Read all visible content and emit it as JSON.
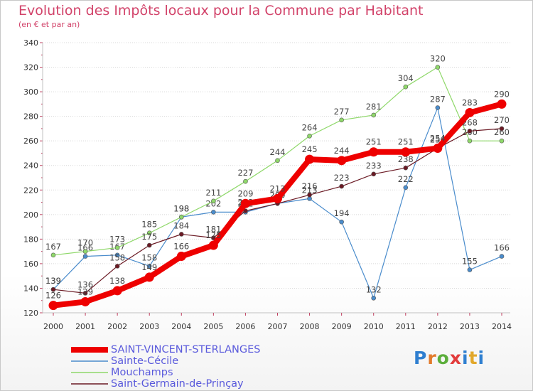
{
  "title": "Evolution des Impôts locaux pour la Commune par Habitant",
  "subtitle": "(en € et par an)",
  "logo": "Proxiti",
  "colors": {
    "title": "#d2436a",
    "axis": "#c0c0c0",
    "grid": "#d8d8d8",
    "legend_text": "#5a5adc"
  },
  "chart_data": {
    "type": "line",
    "x": [
      2000,
      2001,
      2002,
      2003,
      2004,
      2005,
      2006,
      2007,
      2008,
      2009,
      2010,
      2011,
      2012,
      2013,
      2014
    ],
    "ylim": [
      120,
      340
    ],
    "yticks": [
      120,
      140,
      160,
      180,
      200,
      220,
      240,
      260,
      280,
      300,
      320,
      340
    ],
    "grid": "horizontal",
    "legend_position": "bottom-left",
    "series": [
      {
        "name": "Sainte-Cécile",
        "color": "#4a8ccc",
        "width": 1.2,
        "values": [
          139,
          166,
          167,
          158,
          198,
          202,
          202,
          209,
          213,
          194,
          132,
          222,
          287,
          155,
          166
        ]
      },
      {
        "name": "Mouchamps",
        "color": "#8fd86a",
        "width": 1.2,
        "values": [
          167,
          170,
          173,
          185,
          198,
          211,
          227,
          244,
          264,
          277,
          281,
          304,
          320,
          260,
          260
        ]
      },
      {
        "name": "Saint-Germain-de-Prinçay",
        "color": "#6b1a24",
        "width": 1.2,
        "values": [
          139,
          136,
          158,
          175,
          184,
          181,
          203,
          209,
          216,
          223,
          233,
          238,
          254,
          268,
          270
        ]
      },
      {
        "name": "SAINT-VINCENT-STERLANGES",
        "color": "#ee0000",
        "width": 8,
        "values": [
          126,
          129,
          138,
          149,
          166,
          175,
          209,
          213,
          245,
          244,
          251,
          251,
          254,
          283,
          290
        ]
      }
    ]
  },
  "legend": [
    {
      "name": "SAINT-VINCENT-STERLANGES",
      "color": "#ee0000",
      "thick": true
    },
    {
      "name": "Sainte-Cécile",
      "color": "#4a8ccc",
      "thick": false
    },
    {
      "name": "Mouchamps",
      "color": "#8fd86a",
      "thick": false
    },
    {
      "name": "Saint-Germain-de-Prinçay",
      "color": "#6b1a24",
      "thick": false
    }
  ]
}
